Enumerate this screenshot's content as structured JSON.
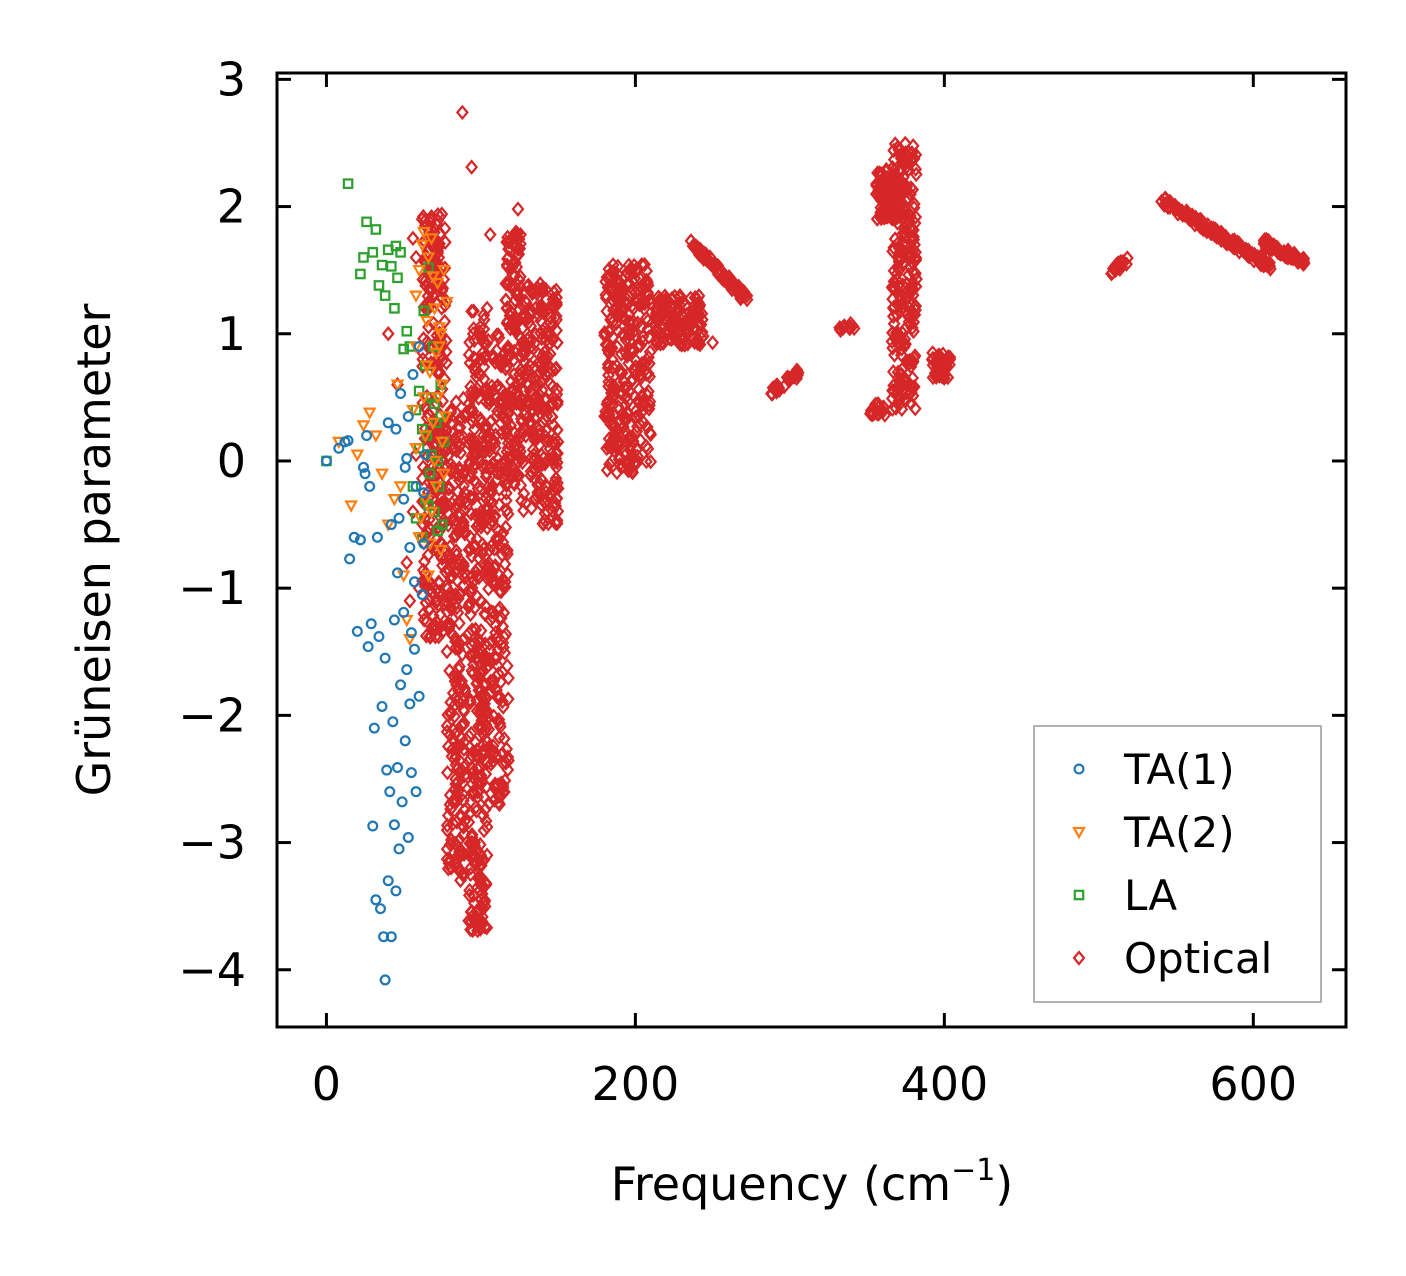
{
  "chart_data": {
    "type": "scatter",
    "xlabel": "Frequency (cm⁻¹)",
    "xlabel_base": "Frequency (cm",
    "xlabel_sup": "−1",
    "xlabel_close": ")",
    "ylabel": "Grüneisen parameter",
    "xlim": [
      -32,
      660
    ],
    "ylim": [
      -4.45,
      3.05
    ],
    "xticks": [
      0,
      200,
      400,
      600
    ],
    "xtick_labels": [
      "0",
      "200",
      "400",
      "600"
    ],
    "yticks": [
      -4,
      -3,
      -2,
      -1,
      0,
      1,
      2,
      3
    ],
    "ytick_labels": [
      "−4",
      "−3",
      "−2",
      "−1",
      "0",
      "1",
      "2",
      "3"
    ],
    "grid": false,
    "legend_position": "lower-right",
    "series": [
      {
        "name": "TA(1)",
        "marker": "circle",
        "color": "#1f77b4",
        "points": [
          [
            0,
            0
          ],
          [
            8,
            0.1
          ],
          [
            12,
            0.15
          ],
          [
            14,
            0.16
          ],
          [
            15,
            -0.77
          ],
          [
            18,
            -0.6
          ],
          [
            20,
            -1.34
          ],
          [
            22,
            -0.62
          ],
          [
            24,
            -0.05
          ],
          [
            25,
            -0.1
          ],
          [
            26,
            0.2
          ],
          [
            27,
            -1.46
          ],
          [
            28,
            -0.2
          ],
          [
            29,
            -1.28
          ],
          [
            30,
            -2.87
          ],
          [
            31,
            -2.1
          ],
          [
            32,
            -3.45
          ],
          [
            33,
            -0.6
          ],
          [
            34,
            -1.38
          ],
          [
            35,
            -3.52
          ],
          [
            36,
            -1.93
          ],
          [
            37,
            -3.74
          ],
          [
            38,
            -4.08
          ],
          [
            38,
            -1.55
          ],
          [
            39,
            -2.43
          ],
          [
            40,
            -3.3
          ],
          [
            40,
            0.3
          ],
          [
            41,
            -2.6
          ],
          [
            42,
            -0.5
          ],
          [
            42,
            -3.74
          ],
          [
            43,
            -2.05
          ],
          [
            44,
            -2.86
          ],
          [
            44,
            -1.25
          ],
          [
            45,
            -3.38
          ],
          [
            46,
            -2.41
          ],
          [
            46,
            -0.88
          ],
          [
            47,
            -3.05
          ],
          [
            48,
            -1.76
          ],
          [
            48,
            0.53
          ],
          [
            49,
            -2.68
          ],
          [
            50,
            -1.19
          ],
          [
            50,
            -0.3
          ],
          [
            51,
            -2.2
          ],
          [
            52,
            -1.64
          ],
          [
            52,
            0.02
          ],
          [
            53,
            -2.96
          ],
          [
            54,
            -0.68
          ],
          [
            54,
            -1.91
          ],
          [
            55,
            -2.45
          ],
          [
            56,
            0.68
          ],
          [
            57,
            -1.48
          ],
          [
            58,
            -2.6
          ],
          [
            58,
            -0.2
          ],
          [
            60,
            -1.85
          ],
          [
            60,
            0.9
          ],
          [
            62,
            -1.05
          ],
          [
            63,
            -0.65
          ],
          [
            63,
            -0.25
          ],
          [
            64,
            0.05
          ],
          [
            45,
            0.25
          ],
          [
            47,
            -0.45
          ],
          [
            51,
            -0.05
          ],
          [
            53,
            0.35
          ],
          [
            55,
            -1.35
          ],
          [
            57,
            -0.95
          ]
        ]
      },
      {
        "name": "TA(2)",
        "marker": "triangle-down",
        "color": "#ff7f0e",
        "points": [
          [
            8,
            0.15
          ],
          [
            16,
            -0.35
          ],
          [
            20,
            0.05
          ],
          [
            24,
            0.28
          ],
          [
            28,
            0.38
          ],
          [
            32,
            0.2
          ],
          [
            36,
            -0.1
          ],
          [
            40,
            -0.5
          ],
          [
            44,
            -0.3
          ],
          [
            46,
            0.6
          ],
          [
            48,
            -0.2
          ],
          [
            50,
            -0.9
          ],
          [
            52,
            -1.25
          ],
          [
            54,
            -1.4
          ],
          [
            56,
            0.4
          ],
          [
            58,
            0.9
          ],
          [
            58,
            1.3
          ],
          [
            60,
            1.5
          ],
          [
            60,
            -0.6
          ],
          [
            62,
            1.7
          ],
          [
            63,
            1.8
          ],
          [
            64,
            -0.3
          ],
          [
            64,
            0.2
          ],
          [
            65,
            1.1
          ],
          [
            66,
            -0.9
          ],
          [
            66,
            1.6
          ],
          [
            67,
            0.7
          ],
          [
            68,
            1.75
          ],
          [
            68,
            -0.4
          ],
          [
            69,
            0.3
          ],
          [
            70,
            1.2
          ],
          [
            70,
            0.0
          ],
          [
            71,
            -0.2
          ],
          [
            72,
            0.5
          ],
          [
            72,
            1.4
          ],
          [
            73,
            0.9
          ],
          [
            74,
            -0.7
          ],
          [
            74,
            1.0
          ],
          [
            75,
            0.6
          ],
          [
            76,
            1.5
          ],
          [
            76,
            -0.1
          ],
          [
            77,
            0.35
          ],
          [
            78,
            1.25
          ],
          [
            58,
            0.1
          ],
          [
            61,
            -0.45
          ],
          [
            63,
            0.5
          ],
          [
            65,
            0.75
          ],
          [
            67,
            -0.65
          ],
          [
            69,
            1.45
          ],
          [
            71,
            0.85
          ],
          [
            73,
            1.05
          ],
          [
            75,
            0.15
          ]
        ]
      },
      {
        "name": "LA",
        "marker": "square",
        "color": "#2ca02c",
        "points": [
          [
            0,
            0
          ],
          [
            14,
            2.18
          ],
          [
            22,
            1.47
          ],
          [
            24,
            1.6
          ],
          [
            26,
            1.88
          ],
          [
            30,
            1.64
          ],
          [
            32,
            1.82
          ],
          [
            34,
            1.38
          ],
          [
            36,
            1.54
          ],
          [
            38,
            1.3
          ],
          [
            40,
            1.66
          ],
          [
            42,
            1.53
          ],
          [
            44,
            1.2
          ],
          [
            45,
            1.69
          ],
          [
            46,
            1.44
          ],
          [
            48,
            1.64
          ],
          [
            50,
            0.88
          ],
          [
            52,
            1.02
          ],
          [
            54,
            0.9
          ],
          [
            56,
            -0.2
          ],
          [
            58,
            0.4
          ],
          [
            60,
            0.1
          ],
          [
            62,
            -0.6
          ],
          [
            63,
            1.18
          ],
          [
            64,
            -0.3
          ],
          [
            65,
            0.2
          ],
          [
            66,
            1.52
          ],
          [
            67,
            -0.1
          ],
          [
            68,
            0.5
          ],
          [
            69,
            0.9
          ],
          [
            70,
            -0.4
          ],
          [
            71,
            0.3
          ],
          [
            72,
            0.0
          ],
          [
            73,
            -0.2
          ],
          [
            74,
            0.6
          ],
          [
            75,
            -0.5
          ],
          [
            76,
            0.15
          ],
          [
            58,
            -0.45
          ],
          [
            60,
            0.55
          ],
          [
            62,
            0.25
          ],
          [
            64,
            0.75
          ],
          [
            66,
            -0.35
          ],
          [
            68,
            0.05
          ],
          [
            70,
            0.45
          ],
          [
            72,
            -0.55
          ],
          [
            74,
            0.35
          ]
        ]
      },
      {
        "name": "Optical",
        "marker": "diamond",
        "color": "#d62728",
        "clusters": [
          {
            "x": [
              62,
              78
            ],
            "y": [
              -1.4,
              1.95
            ],
            "n": 260
          },
          {
            "x": [
              78,
              90
            ],
            "y": [
              -3.3,
              0.5
            ],
            "n": 240
          },
          {
            "x": [
              92,
              104
            ],
            "y": [
              -3.7,
              1.2
            ],
            "n": 320
          },
          {
            "x": [
              104,
              118
            ],
            "y": [
              -2.7,
              1.0
            ],
            "n": 220
          },
          {
            "x": [
              116,
              126
            ],
            "y": [
              -0.2,
              1.8
            ],
            "n": 140
          },
          {
            "x": [
              126,
              150
            ],
            "y": [
              -0.5,
              1.4
            ],
            "n": 260
          },
          {
            "x": [
              180,
              210
            ],
            "y": [
              -0.1,
              1.55
            ],
            "n": 300
          },
          {
            "x": [
              212,
              244
            ],
            "y": [
              0.9,
              1.3
            ],
            "n": 130
          },
          {
            "x": [
              238,
              272
            ],
            "y": [
              1.25,
              1.7
            ],
            "line": [
              [
                238,
                1.7
              ],
              [
                272,
                1.27
              ]
            ],
            "n": 90
          },
          {
            "x": [
              288,
              306
            ],
            "y": [
              0.55,
              0.72
            ],
            "line": [
              [
                288,
                0.55
              ],
              [
                306,
                0.7
              ]
            ],
            "n": 30
          },
          {
            "x": [
              332,
              342
            ],
            "y": [
              1.02,
              1.08
            ],
            "n": 14
          },
          {
            "x": [
              352,
              362
            ],
            "y": [
              0.35,
              0.45
            ],
            "n": 16
          },
          {
            "x": [
              356,
              372
            ],
            "y": [
              1.9,
              2.3
            ],
            "n": 110
          },
          {
            "x": [
              366,
              382
            ],
            "y": [
              0.4,
              2.5
            ],
            "n": 250
          },
          {
            "x": [
              392,
              404
            ],
            "y": [
              0.65,
              0.85
            ],
            "n": 40
          },
          {
            "x": [
              506,
              520
            ],
            "y": [
              1.48,
              1.6
            ],
            "line": [
              [
                506,
                1.48
              ],
              [
                520,
                1.6
              ]
            ],
            "n": 16
          },
          {
            "x": [
              540,
              612
            ],
            "y": [
              1.5,
              2.06
            ],
            "line": [
              [
                540,
                2.06
              ],
              [
                612,
                1.52
              ]
            ],
            "n": 160
          },
          {
            "x": [
              606,
              634
            ],
            "y": [
              1.55,
              1.72
            ],
            "line": [
              [
                606,
                1.72
              ],
              [
                634,
                1.56
              ]
            ],
            "n": 70
          }
        ],
        "points": [
          [
            88,
            2.74
          ],
          [
            94,
            2.31
          ],
          [
            106,
            1.78
          ],
          [
            124,
            1.98
          ],
          [
            62,
            1.9
          ],
          [
            64,
            1.85
          ],
          [
            66,
            1.75
          ],
          [
            68,
            1.92
          ],
          [
            70,
            1.7
          ],
          [
            72,
            1.65
          ],
          [
            56,
            1.75
          ],
          [
            58,
            1.6
          ],
          [
            40,
            1.0
          ],
          [
            46,
            0.6
          ],
          [
            52,
            -0.8
          ],
          [
            54,
            -1.1
          ],
          [
            56,
            -0.4
          ],
          [
            58,
            0.05
          ],
          [
            60,
            -1.0
          ],
          [
            63,
            -1.2
          ],
          [
            236,
            1.73
          ],
          [
            250,
            0.93
          ],
          [
            82,
            -3.0
          ],
          [
            88,
            -3.25
          ],
          [
            98,
            -3.6
          ],
          [
            100,
            -3.45
          ],
          [
            104,
            -3.1
          ],
          [
            96,
            -3.0
          ],
          [
            112,
            -2.7
          ],
          [
            114,
            -2.3
          ],
          [
            112,
            -1.85
          ],
          [
            110,
            -1.55
          ],
          [
            100,
            0.8
          ],
          [
            104,
            1.2
          ],
          [
            118,
            1.6
          ]
        ]
      }
    ]
  }
}
